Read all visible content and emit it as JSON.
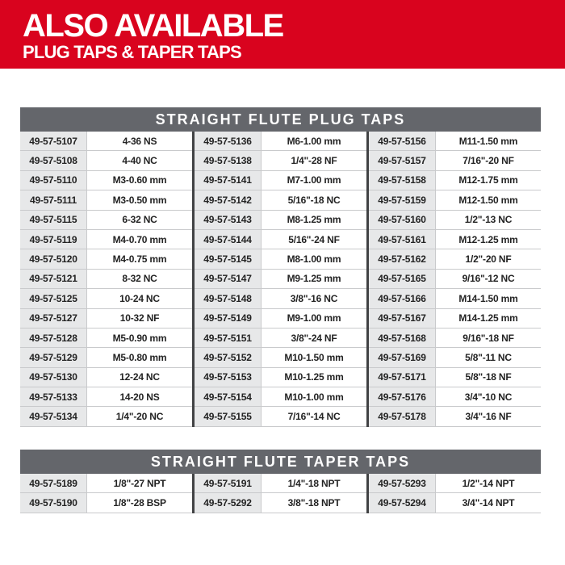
{
  "banner": {
    "title": "ALSO AVAILABLE",
    "subtitle": "PLUG TAPS & TAPER TAPS"
  },
  "colors": {
    "brand_red": "#D9031E",
    "table_header_gray": "#64666B",
    "part_cell_gray": "#E7E8E9",
    "row_border_gray": "#C9CACC",
    "group_divider_dark": "#414244",
    "text_dark": "#232323",
    "text_on_dark": "#FFFFFF"
  },
  "plug_taps_table": {
    "title": "STRAIGHT FLUTE PLUG TAPS",
    "rows": [
      [
        "49-57-5107",
        "4-36 NS",
        "49-57-5136",
        "M6-1.00 mm",
        "49-57-5156",
        "M11-1.50 mm"
      ],
      [
        "49-57-5108",
        "4-40 NC",
        "49-57-5138",
        "1/4\"-28 NF",
        "49-57-5157",
        "7/16\"-20 NF"
      ],
      [
        "49-57-5110",
        "M3-0.60 mm",
        "49-57-5141",
        "M7-1.00 mm",
        "49-57-5158",
        "M12-1.75 mm"
      ],
      [
        "49-57-5111",
        "M3-0.50 mm",
        "49-57-5142",
        "5/16\"-18 NC",
        "49-57-5159",
        "M12-1.50 mm"
      ],
      [
        "49-57-5115",
        "6-32 NC",
        "49-57-5143",
        "M8-1.25 mm",
        "49-57-5160",
        "1/2\"-13 NC"
      ],
      [
        "49-57-5119",
        "M4-0.70 mm",
        "49-57-5144",
        "5/16\"-24 NF",
        "49-57-5161",
        "M12-1.25 mm"
      ],
      [
        "49-57-5120",
        "M4-0.75 mm",
        "49-57-5145",
        "M8-1.00 mm",
        "49-57-5162",
        "1/2\"-20 NF"
      ],
      [
        "49-57-5121",
        "8-32 NC",
        "49-57-5147",
        "M9-1.25 mm",
        "49-57-5165",
        "9/16\"-12 NC"
      ],
      [
        "49-57-5125",
        "10-24 NC",
        "49-57-5148",
        "3/8\"-16 NC",
        "49-57-5166",
        "M14-1.50 mm"
      ],
      [
        "49-57-5127",
        "10-32 NF",
        "49-57-5149",
        "M9-1.00 mm",
        "49-57-5167",
        "M14-1.25 mm"
      ],
      [
        "49-57-5128",
        "M5-0.90 mm",
        "49-57-5151",
        "3/8\"-24 NF",
        "49-57-5168",
        "9/16\"-18 NF"
      ],
      [
        "49-57-5129",
        "M5-0.80 mm",
        "49-57-5152",
        "M10-1.50 mm",
        "49-57-5169",
        "5/8\"-11 NC"
      ],
      [
        "49-57-5130",
        "12-24 NC",
        "49-57-5153",
        "M10-1.25 mm",
        "49-57-5171",
        "5/8\"-18 NF"
      ],
      [
        "49-57-5133",
        "14-20 NS",
        "49-57-5154",
        "M10-1.00 mm",
        "49-57-5176",
        "3/4\"-10 NC"
      ],
      [
        "49-57-5134",
        "1/4\"-20 NC",
        "49-57-5155",
        "7/16\"-14 NC",
        "49-57-5178",
        "3/4\"-16 NF"
      ]
    ]
  },
  "taper_taps_table": {
    "title": "STRAIGHT FLUTE TAPER TAPS",
    "rows": [
      [
        "49-57-5189",
        "1/8\"-27 NPT",
        "49-57-5191",
        "1/4\"-18 NPT",
        "49-57-5293",
        "1/2\"-14 NPT"
      ],
      [
        "49-57-5190",
        "1/8\"-28 BSP",
        "49-57-5292",
        "3/8\"-18 NPT",
        "49-57-5294",
        "3/4\"-14 NPT"
      ]
    ]
  }
}
